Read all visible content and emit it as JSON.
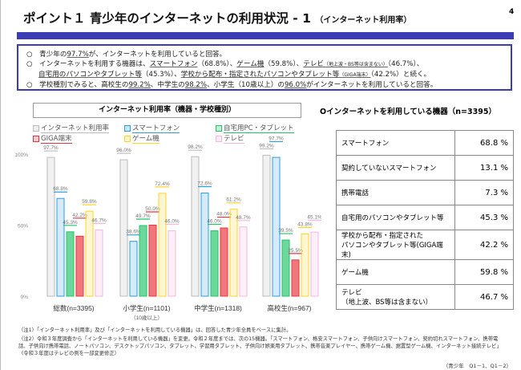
{
  "header": {
    "title": "ポイント１ 青少年のインターネットの利用状況 - 1",
    "subtitle": "（インターネット利用率）",
    "page_number": "4"
  },
  "summary": {
    "l1": [
      "○　青少年の",
      "97.7%",
      "が、インターネットを利用していると回答。"
    ],
    "l2": [
      "○　インターネットを利用する機器は、",
      "スマートフォン",
      "（68.8%）、",
      "ゲーム機",
      "（59.8%）、",
      "テレビ",
      "（地上波・BS等は含まない）",
      "（46.7%）、"
    ],
    "l3": [
      "自宅用のパソコンやタブレット等",
      "（45.3%）、",
      "学校から配布・指定されたパソコンやタブレット等",
      "（GIGA端末）",
      "（42.2%）と続く。"
    ],
    "l4": [
      "○　学校種別でみると、高校生の",
      "99.2%",
      "、中学生の",
      "98.2%",
      "、小学生（10歳以上）の",
      "96.0%",
      "がインターネットを利用していると回答。"
    ]
  },
  "chart_data": {
    "type": "bar",
    "title": "インターネット利用率（機器・学校種別）",
    "categories": [
      "総数(n=3395)",
      "小学生(n=1101)",
      "中学生(n=1318)",
      "高校生(n=967)"
    ],
    "category_note": "（10歳以上）",
    "yticks": [
      "0%",
      "50%",
      "100%"
    ],
    "ylim": [
      0,
      100
    ],
    "series": [
      {
        "name": "インターネット利用率",
        "color": "#bbbbbb",
        "values": [
          97.7,
          96.0,
          98.2,
          99.2
        ]
      },
      {
        "name": "スマートフォン",
        "color": "#2f9be0",
        "values": [
          68.8,
          38.6,
          72.6,
          97.7
        ]
      },
      {
        "name": "自宅用PC・タブレット",
        "color": "#22c46a",
        "values": [
          45.3,
          49.7,
          46.0,
          39.5
        ]
      },
      {
        "name": "GIGA端末",
        "color": "#e8343c",
        "values": [
          42.2,
          50.0,
          48.0,
          25.5
        ]
      },
      {
        "name": "ゲーム機",
        "color": "#ffd42a",
        "values": [
          59.8,
          72.4,
          61.2,
          43.8
        ]
      },
      {
        "name": "テレビ",
        "color": "#f7b6dc",
        "values": [
          46.7,
          46.0,
          48.7,
          45.1
        ]
      }
    ]
  },
  "devices": {
    "title": "Oインターネットを利用している機器（n=3395）",
    "rows": [
      {
        "label": "スマートフォン",
        "value": "68.8 %"
      },
      {
        "label": "契約していないスマートフォン",
        "value": "13.1 %"
      },
      {
        "label": "携帯電話",
        "value": "7.3 %"
      },
      {
        "label": "自宅用のパソコンやタブレット等",
        "value": "45.3 %"
      },
      {
        "label": "学校から配布・指定された",
        "label2": "パソコンやタブレット等(GIGA端末)",
        "value": "42.2 %"
      },
      {
        "label": "ゲーム機",
        "value": "59.8 %"
      },
      {
        "label": "テレビ",
        "label2": "（地上波、BS等は含まない）",
        "value": "46.7 %"
      }
    ]
  },
  "notes": {
    "n1": "（注1）「インターネット利用率」及び「インターネットを利用している機器」は、回答した青少年全員をベースに集計。",
    "n2": "（注2）令和３年度調査から「インターネットを利用している機器」を変更。令和２年度までは、次の15機器。「スマートフォン、格安スマートフォン、子供向けスマートフォン、契約切れスマートフォン、携帯電話、子供向け携帯電話、ノートパソコン、デスクトップパソコン、タブレット、学習用タブレット、子供向け娯楽用タブレット、携帯音楽プレイヤー、携帯ゲーム機、据置型ゲーム機、インターネット接続テレビ」（令和３年度はテレビの例を一部変更修正）",
    "source": "（青少年　Q1－1、Q1－2）"
  }
}
